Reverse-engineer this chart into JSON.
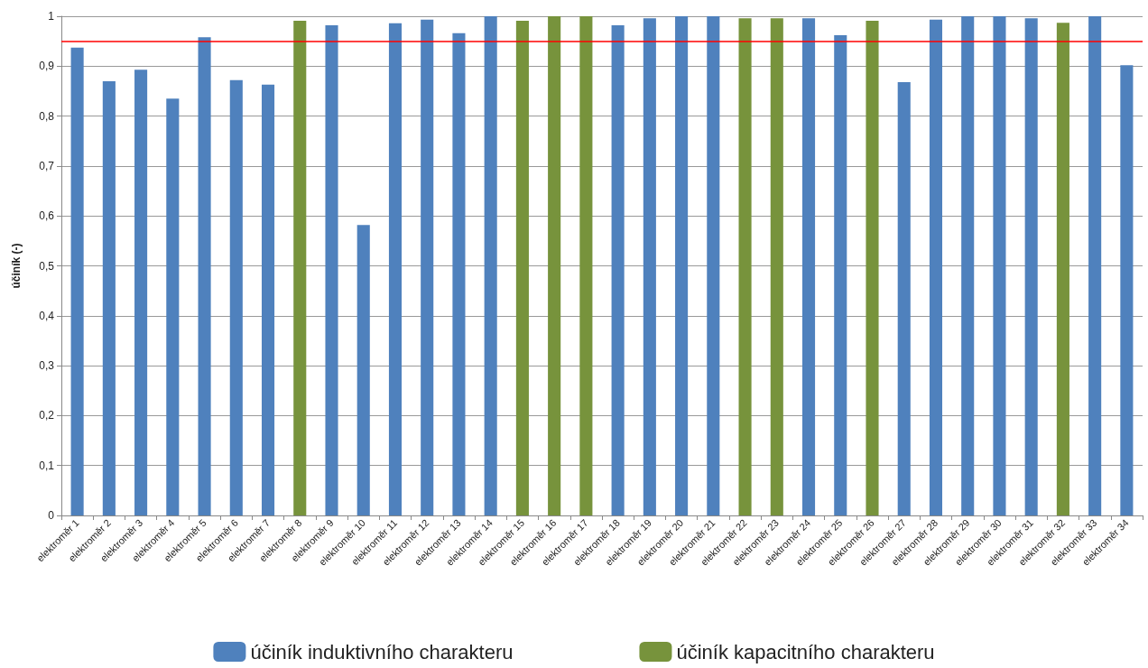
{
  "chart_data": {
    "type": "bar",
    "ylabel": "účiník (-)",
    "categories": [
      "elektroměr 1",
      "elektroměr 2",
      "elektroměr 3",
      "elektroměr 4",
      "elektroměr 5",
      "elektroměr 6",
      "elektroměr 7",
      "elektroměr 8",
      "elektroměr 9",
      "elektroměr 10",
      "elektroměr 11",
      "elektroměr 12",
      "elektroměr 13",
      "elektroměr 14",
      "elektroměr 15",
      "elektroměr 16",
      "elektroměr 17",
      "elektroměr 18",
      "elektroměr 19",
      "elektroměr 20",
      "elektroměr 21",
      "elektroměr 22",
      "elektroměr 23",
      "elektroměr 24",
      "elektroměr 25",
      "elektroměr 26",
      "elektroměr 27",
      "elektroměr 28",
      "elektroměr 29",
      "elektroměr 30",
      "elektroměr 31",
      "elektroměr 32",
      "elektroměr 33",
      "elektroměr 34"
    ],
    "series": [
      {
        "name": "účiník induktivního charakteru",
        "color": "#4f81bd",
        "values": [
          0.937,
          0.87,
          0.893,
          0.835,
          0.958,
          0.872,
          0.863,
          null,
          0.982,
          0.582,
          0.986,
          0.993,
          0.966,
          1.0,
          null,
          null,
          null,
          0.982,
          0.996,
          1.0,
          1.0,
          null,
          null,
          0.996,
          0.962,
          null,
          0.868,
          0.993,
          1.0,
          1.0,
          0.996,
          null,
          1.0,
          0.902
        ]
      },
      {
        "name": "účiník kapacitního charakteru",
        "color": "#77933c",
        "values": [
          null,
          null,
          null,
          null,
          null,
          null,
          null,
          0.991,
          null,
          null,
          null,
          null,
          null,
          null,
          0.991,
          1.0,
          1.0,
          null,
          null,
          null,
          null,
          0.996,
          0.996,
          null,
          null,
          0.991,
          null,
          null,
          null,
          null,
          null,
          0.987,
          null,
          null
        ]
      }
    ],
    "ylim": [
      0,
      1
    ],
    "yticks": [
      0,
      {
        "value": 0.1,
        "label": "0,1"
      },
      {
        "value": 0.2,
        "label": "0,2"
      },
      {
        "value": 0.3,
        "label": "0,3"
      },
      {
        "value": 0.4,
        "label": "0,4"
      },
      {
        "value": 0.5,
        "label": "0,5"
      },
      {
        "value": 0.6,
        "label": "0,6"
      },
      {
        "value": 0.7,
        "label": "0,7"
      },
      {
        "value": 0.8,
        "label": "0,8"
      },
      {
        "value": 0.9,
        "label": "0,9"
      },
      1
    ],
    "ref_lines": [
      {
        "axis": "y",
        "value": 0.95,
        "color": "#ff0000"
      }
    ],
    "grid": "y",
    "legend": "bottom"
  }
}
